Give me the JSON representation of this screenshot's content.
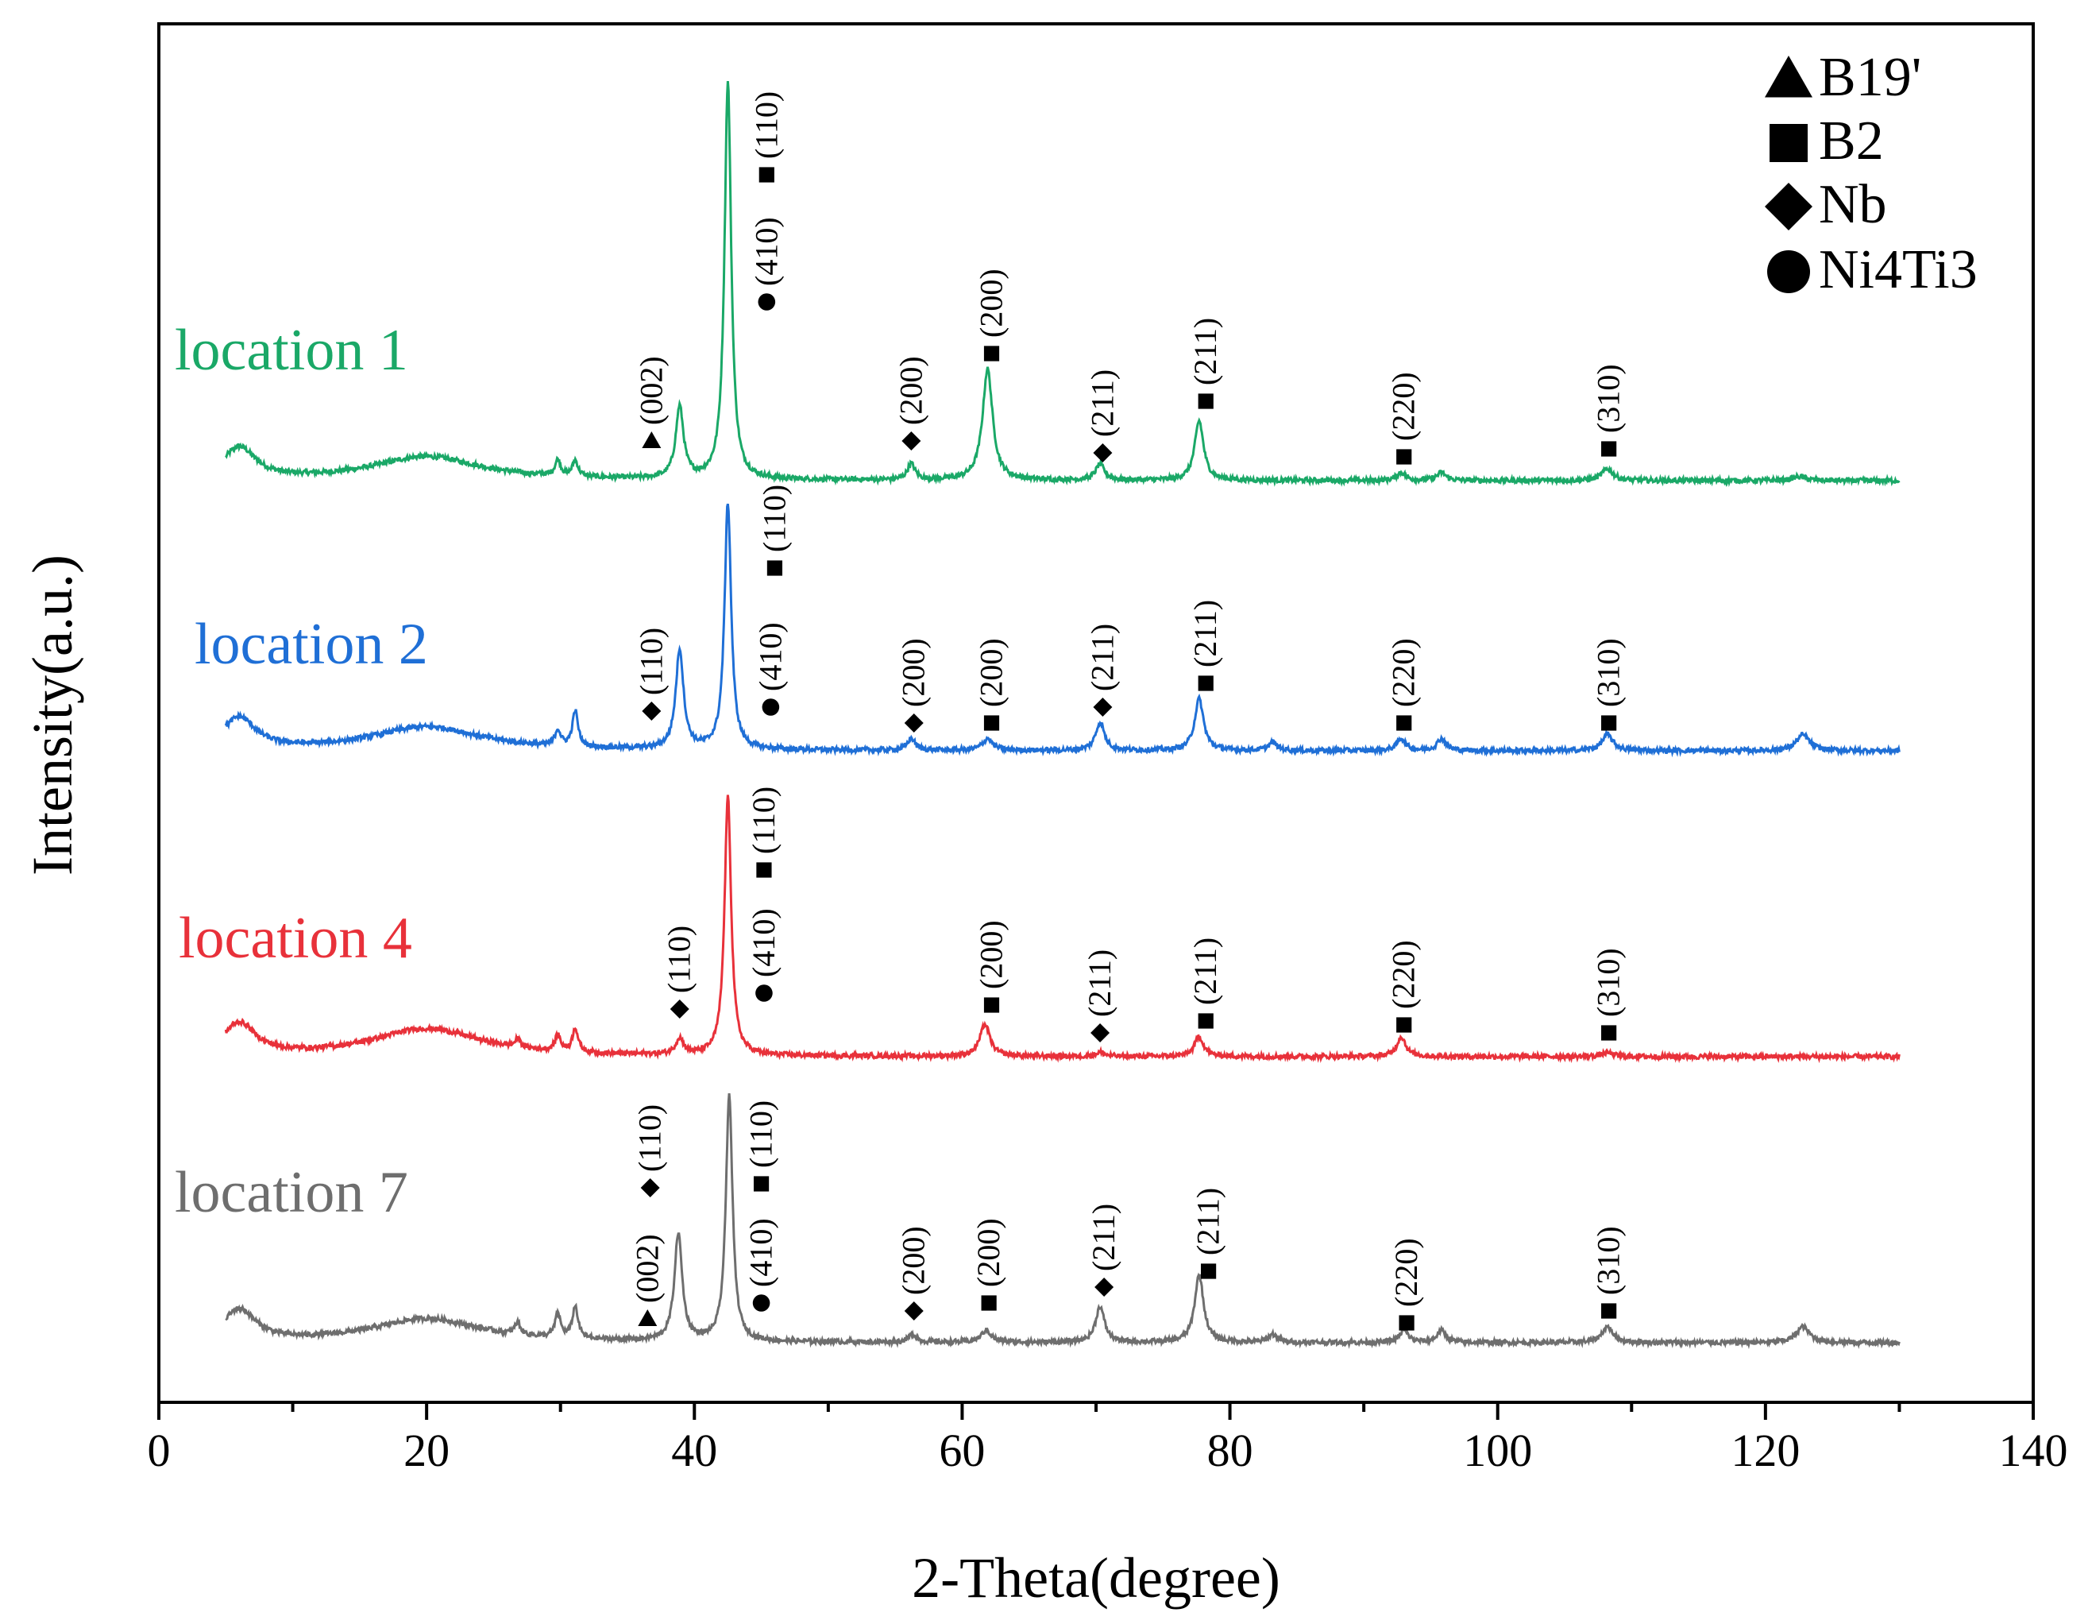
{
  "chart_data": {
    "type": "line",
    "xlabel": "2-Theta(degree)",
    "ylabel": "Intensity(a.u.)",
    "xlim": [
      0,
      140
    ],
    "x_ticks": [
      0,
      20,
      40,
      60,
      80,
      100,
      120,
      140
    ],
    "x_range": [
      5,
      130
    ],
    "grid": false,
    "legend_position": "top-right",
    "legend": [
      {
        "marker": "triangle",
        "label": "B19'"
      },
      {
        "marker": "square",
        "label": "B2"
      },
      {
        "marker": "diamond",
        "label": "Nb"
      },
      {
        "marker": "circle",
        "label": "Ni4Ti3"
      }
    ],
    "series": [
      {
        "name": "location 1",
        "color": "#1aa867",
        "baseline": 0,
        "peaks": [
          {
            "x": 6,
            "h": 0.08,
            "w": 1.5
          },
          {
            "x": 20,
            "h": 0.06,
            "w": 5
          },
          {
            "x": 29.8,
            "h": 0.04,
            "w": 0.25
          },
          {
            "x": 31.1,
            "h": 0.04,
            "w": 0.25
          },
          {
            "x": 38.9,
            "h": 0.18,
            "w": 0.35
          },
          {
            "x": 42.5,
            "h": 1.0,
            "w": 0.3
          },
          {
            "x": 56.2,
            "h": 0.04,
            "w": 0.35
          },
          {
            "x": 61.9,
            "h": 0.28,
            "w": 0.45
          },
          {
            "x": 70.3,
            "h": 0.04,
            "w": 0.4
          },
          {
            "x": 77.7,
            "h": 0.15,
            "w": 0.4
          },
          {
            "x": 92.8,
            "h": 0.02,
            "w": 0.4
          },
          {
            "x": 95.8,
            "h": 0.02,
            "w": 0.4
          },
          {
            "x": 108.2,
            "h": 0.03,
            "w": 0.5
          },
          {
            "x": 122.5,
            "h": 0.01,
            "w": 0.6
          }
        ],
        "annotations": [
          {
            "x": 36.8,
            "marker": "triangle",
            "label": "(002)",
            "level": 0.1
          },
          {
            "x": 45.4,
            "marker": "square",
            "label": "(110)",
            "level": 0.77
          },
          {
            "x": 45.4,
            "marker": "circle",
            "label": "(410)",
            "level": 0.45
          },
          {
            "x": 56.2,
            "marker": "diamond",
            "label": "(200)",
            "level": 0.1
          },
          {
            "x": 62.2,
            "marker": "square",
            "label": "(200)",
            "level": 0.32
          },
          {
            "x": 70.5,
            "marker": "diamond",
            "label": "(211)",
            "level": 0.07
          },
          {
            "x": 78.2,
            "marker": "square",
            "label": "(211)",
            "level": 0.2
          },
          {
            "x": 93.0,
            "marker": "square",
            "label": "(220)",
            "level": 0.06
          },
          {
            "x": 108.3,
            "marker": "square",
            "label": "(310)",
            "level": 0.08
          }
        ]
      },
      {
        "name": "location 2",
        "color": "#1f6fd6",
        "baseline": 0,
        "peaks": [
          {
            "x": 6,
            "h": 0.08,
            "w": 1.5
          },
          {
            "x": 20,
            "h": 0.06,
            "w": 5
          },
          {
            "x": 29.8,
            "h": 0.04,
            "w": 0.25
          },
          {
            "x": 31.1,
            "h": 0.09,
            "w": 0.25
          },
          {
            "x": 38.9,
            "h": 0.25,
            "w": 0.35
          },
          {
            "x": 42.5,
            "h": 0.62,
            "w": 0.3
          },
          {
            "x": 56.2,
            "h": 0.03,
            "w": 0.35
          },
          {
            "x": 61.9,
            "h": 0.03,
            "w": 0.45
          },
          {
            "x": 70.3,
            "h": 0.07,
            "w": 0.4
          },
          {
            "x": 77.7,
            "h": 0.13,
            "w": 0.4
          },
          {
            "x": 83.2,
            "h": 0.02,
            "w": 0.4
          },
          {
            "x": 92.8,
            "h": 0.03,
            "w": 0.4
          },
          {
            "x": 95.8,
            "h": 0.03,
            "w": 0.4
          },
          {
            "x": 108.2,
            "h": 0.04,
            "w": 0.5
          },
          {
            "x": 122.8,
            "h": 0.04,
            "w": 0.6
          }
        ],
        "annotations": [
          {
            "x": 36.8,
            "marker": "diamond",
            "label": "(110)",
            "level": 0.1
          },
          {
            "x": 46.0,
            "marker": "square",
            "label": "(110)",
            "level": 0.46
          },
          {
            "x": 45.7,
            "marker": "circle",
            "label": "(410)",
            "level": 0.11
          },
          {
            "x": 56.4,
            "marker": "diamond",
            "label": "(200)",
            "level": 0.07
          },
          {
            "x": 62.2,
            "marker": "square",
            "label": "(200)",
            "level": 0.07
          },
          {
            "x": 70.5,
            "marker": "diamond",
            "label": "(211)",
            "level": 0.11
          },
          {
            "x": 78.2,
            "marker": "square",
            "label": "(211)",
            "level": 0.17
          },
          {
            "x": 93.0,
            "marker": "square",
            "label": "(220)",
            "level": 0.07
          },
          {
            "x": 108.3,
            "marker": "square",
            "label": "(310)",
            "level": 0.07
          }
        ]
      },
      {
        "name": "location 4",
        "color": "#e8313a",
        "baseline": 0,
        "peaks": [
          {
            "x": 6,
            "h": 0.08,
            "w": 1.5
          },
          {
            "x": 20,
            "h": 0.07,
            "w": 5
          },
          {
            "x": 26.8,
            "h": 0.02,
            "w": 0.25
          },
          {
            "x": 29.8,
            "h": 0.04,
            "w": 0.25
          },
          {
            "x": 31.1,
            "h": 0.06,
            "w": 0.25
          },
          {
            "x": 38.9,
            "h": 0.04,
            "w": 0.35
          },
          {
            "x": 42.5,
            "h": 0.65,
            "w": 0.3
          },
          {
            "x": 61.7,
            "h": 0.08,
            "w": 0.45
          },
          {
            "x": 70.3,
            "h": 0.01,
            "w": 0.4
          },
          {
            "x": 77.7,
            "h": 0.05,
            "w": 0.4
          },
          {
            "x": 92.8,
            "h": 0.05,
            "w": 0.4
          },
          {
            "x": 108.2,
            "h": 0.01,
            "w": 0.5
          }
        ],
        "annotations": [
          {
            "x": 38.9,
            "marker": "diamond",
            "label": "(110)",
            "level": 0.12
          },
          {
            "x": 45.2,
            "marker": "square",
            "label": "(110)",
            "level": 0.47
          },
          {
            "x": 45.2,
            "marker": "circle",
            "label": "(410)",
            "level": 0.16
          },
          {
            "x": 62.2,
            "marker": "square",
            "label": "(200)",
            "level": 0.13
          },
          {
            "x": 70.3,
            "marker": "diamond",
            "label": "(211)",
            "level": 0.06
          },
          {
            "x": 78.2,
            "marker": "square",
            "label": "(211)",
            "level": 0.09
          },
          {
            "x": 93.0,
            "marker": "square",
            "label": "(220)",
            "level": 0.08
          },
          {
            "x": 108.3,
            "marker": "square",
            "label": "(310)",
            "level": 0.06
          }
        ]
      },
      {
        "name": "location 7",
        "color": "#6e6e6e",
        "baseline": 0,
        "peaks": [
          {
            "x": 6,
            "h": 0.08,
            "w": 1.5
          },
          {
            "x": 20,
            "h": 0.06,
            "w": 5
          },
          {
            "x": 26.8,
            "h": 0.03,
            "w": 0.25
          },
          {
            "x": 29.8,
            "h": 0.06,
            "w": 0.25
          },
          {
            "x": 31.1,
            "h": 0.08,
            "w": 0.25
          },
          {
            "x": 38.8,
            "h": 0.27,
            "w": 0.35
          },
          {
            "x": 42.6,
            "h": 0.62,
            "w": 0.3
          },
          {
            "x": 56.3,
            "h": 0.02,
            "w": 0.35
          },
          {
            "x": 61.8,
            "h": 0.03,
            "w": 0.45
          },
          {
            "x": 70.3,
            "h": 0.09,
            "w": 0.4
          },
          {
            "x": 77.7,
            "h": 0.17,
            "w": 0.4
          },
          {
            "x": 83.2,
            "h": 0.02,
            "w": 0.4
          },
          {
            "x": 93.0,
            "h": 0.03,
            "w": 0.4
          },
          {
            "x": 95.8,
            "h": 0.03,
            "w": 0.4
          },
          {
            "x": 108.2,
            "h": 0.04,
            "w": 0.5
          },
          {
            "x": 122.8,
            "h": 0.04,
            "w": 0.6
          }
        ],
        "annotations": [
          {
            "x": 36.5,
            "marker": "triangle",
            "label": "(002)",
            "level": 0.06
          },
          {
            "x": 36.7,
            "marker": "diamond",
            "label": "(110)",
            "level": 0.39
          },
          {
            "x": 45.0,
            "marker": "square",
            "label": "(110)",
            "level": 0.4
          },
          {
            "x": 45.0,
            "marker": "circle",
            "label": "(410)",
            "level": 0.1
          },
          {
            "x": 56.4,
            "marker": "diamond",
            "label": "(200)",
            "level": 0.08
          },
          {
            "x": 62.0,
            "marker": "square",
            "label": "(200)",
            "level": 0.1
          },
          {
            "x": 70.6,
            "marker": "diamond",
            "label": "(211)",
            "level": 0.14
          },
          {
            "x": 78.4,
            "marker": "square",
            "label": "(211)",
            "level": 0.18
          },
          {
            "x": 93.2,
            "marker": "square",
            "label": "(220)",
            "level": 0.05
          },
          {
            "x": 108.3,
            "marker": "square",
            "label": "(310)",
            "level": 0.08
          }
        ]
      }
    ]
  }
}
